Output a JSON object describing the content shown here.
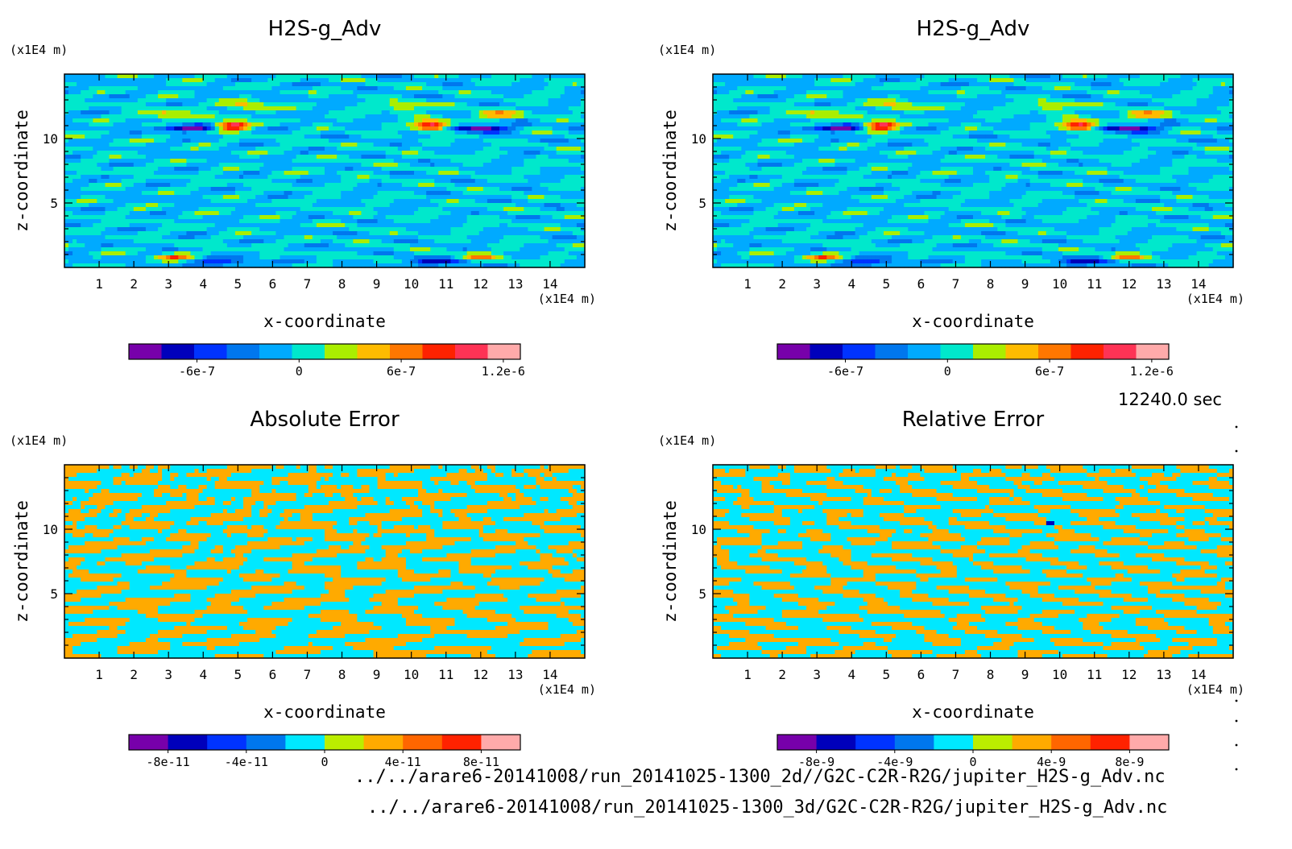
{
  "time_label": "12240.0 sec",
  "file_paths": [
    "../../arare6-20141008/run_20141025-1300_2d//G2C-C2R-R2G/jupiter_H2S-g_Adv.nc",
    "../../arare6-20141008/run_20141025-1300_3d/G2C-C2R-R2G/jupiter_H2S-g_Adv.nc"
  ],
  "chart_data": [
    {
      "type": "heatmap",
      "title": "H2S-g_Adv",
      "xlabel": "x-coordinate",
      "ylabel": "z-coordinate",
      "x_unit": "(x1E4 m)",
      "y_unit": "(x1E4 m)",
      "xlim": [
        0,
        15
      ],
      "ylim": [
        0,
        15
      ],
      "x_ticks": [
        "1",
        "2",
        "3",
        "4",
        "5",
        "6",
        "7",
        "8",
        "9",
        "10",
        "11",
        "12",
        "13",
        "14"
      ],
      "y_ticks": [
        "5",
        "10"
      ],
      "colorbar": {
        "colors": [
          "#7700aa",
          "#0000bb",
          "#0033ff",
          "#0077ee",
          "#00aaff",
          "#00e8cc",
          "#aaee00",
          "#ffbb00",
          "#ff7700",
          "#ff2200",
          "#ff3355",
          "#ffaaaa"
        ],
        "tick_labels": [
          "-6e-7",
          "0",
          "6e-7",
          "1.2e-6"
        ],
        "tick_values": [
          -6e-07,
          0,
          6e-07,
          1.2e-06
        ],
        "range": [
          -1e-06,
          1.3e-06
        ]
      },
      "pattern": "field"
    },
    {
      "type": "heatmap",
      "title": "H2S-g_Adv",
      "xlabel": "x-coordinate",
      "ylabel": "z-coordinate",
      "x_unit": "(x1E4 m)",
      "y_unit": "(x1E4 m)",
      "xlim": [
        0,
        15
      ],
      "ylim": [
        0,
        15
      ],
      "x_ticks": [
        "1",
        "2",
        "3",
        "4",
        "5",
        "6",
        "7",
        "8",
        "9",
        "10",
        "11",
        "12",
        "13",
        "14"
      ],
      "y_ticks": [
        "5",
        "10"
      ],
      "colorbar": {
        "colors": [
          "#7700aa",
          "#0000bb",
          "#0033ff",
          "#0077ee",
          "#00aaff",
          "#00e8cc",
          "#aaee00",
          "#ffbb00",
          "#ff7700",
          "#ff2200",
          "#ff3355",
          "#ffaaaa"
        ],
        "tick_labels": [
          "-6e-7",
          "0",
          "6e-7",
          "1.2e-6"
        ],
        "tick_values": [
          -6e-07,
          0,
          6e-07,
          1.2e-06
        ],
        "range": [
          -1e-06,
          1.3e-06
        ]
      },
      "pattern": "field"
    },
    {
      "type": "heatmap",
      "title": "Absolute Error",
      "xlabel": "x-coordinate",
      "ylabel": "z-coordinate",
      "x_unit": "(x1E4 m)",
      "y_unit": "(x1E4 m)",
      "xlim": [
        0,
        15
      ],
      "ylim": [
        0,
        15
      ],
      "x_ticks": [
        "1",
        "2",
        "3",
        "4",
        "5",
        "6",
        "7",
        "8",
        "9",
        "10",
        "11",
        "12",
        "13",
        "14"
      ],
      "y_ticks": [
        "5",
        "10"
      ],
      "colorbar": {
        "colors": [
          "#7700aa",
          "#0000bb",
          "#0033ff",
          "#0077ee",
          "#00e8ff",
          "#bbee00",
          "#ffaa00",
          "#ff6600",
          "#ff2200",
          "#ffaaaa"
        ],
        "tick_labels": [
          "-8e-11",
          "-4e-11",
          "0",
          "4e-11",
          "8e-11"
        ],
        "tick_values": [
          -8e-11,
          -4e-11,
          0,
          4e-11,
          8e-11
        ],
        "range": [
          -1e-10,
          1e-10
        ]
      },
      "pattern": "error"
    },
    {
      "type": "heatmap",
      "title": "Relative Error",
      "xlabel": "x-coordinate",
      "ylabel": "z-coordinate",
      "x_unit": "(x1E4 m)",
      "y_unit": "(x1E4 m)",
      "xlim": [
        0,
        15
      ],
      "ylim": [
        0,
        15
      ],
      "x_ticks": [
        "1",
        "2",
        "3",
        "4",
        "5",
        "6",
        "7",
        "8",
        "9",
        "10",
        "11",
        "12",
        "13",
        "14"
      ],
      "y_ticks": [
        "5",
        "10"
      ],
      "colorbar": {
        "colors": [
          "#7700aa",
          "#0000bb",
          "#0033ff",
          "#0077ee",
          "#00e8ff",
          "#bbee00",
          "#ffaa00",
          "#ff6600",
          "#ff2200",
          "#ffaaaa"
        ],
        "tick_labels": [
          "-8e-9",
          "-4e-9",
          "0",
          "4e-9",
          "8e-9"
        ],
        "tick_values": [
          -8e-09,
          -4e-09,
          0,
          4e-09,
          8e-09
        ],
        "range": [
          -1e-08,
          1e-08
        ]
      },
      "pattern": "relerror"
    }
  ]
}
